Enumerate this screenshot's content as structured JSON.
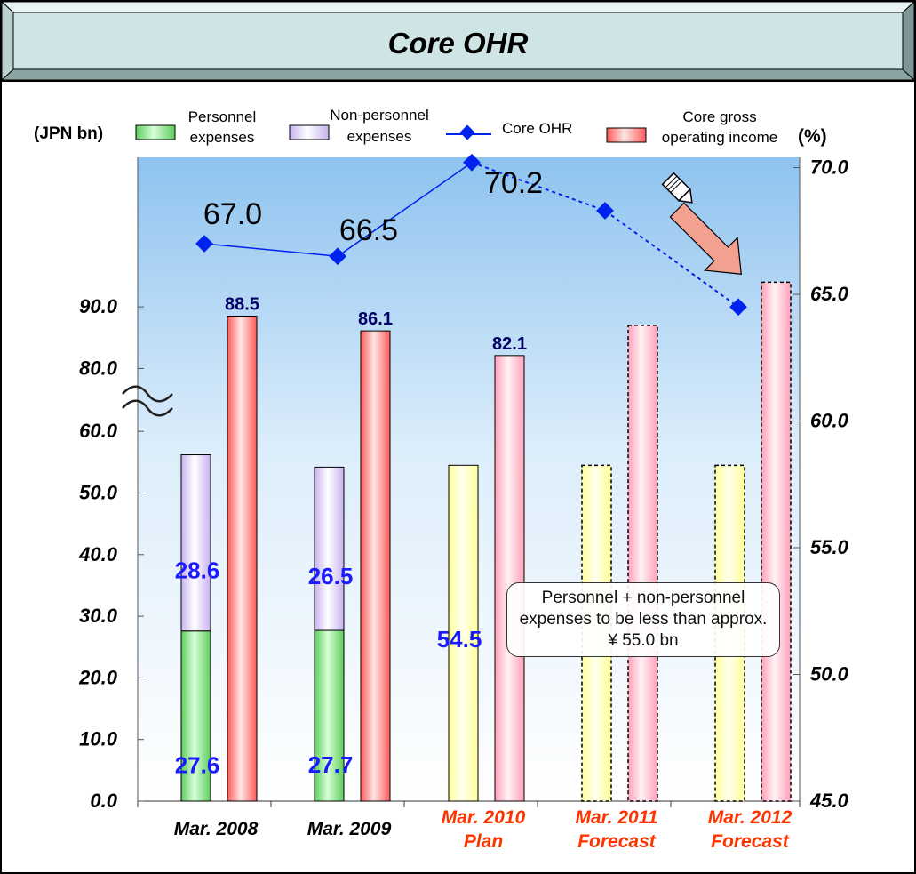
{
  "title": "Core OHR",
  "left_axis_unit": "(JPN bn)",
  "right_axis_unit": "(%)",
  "legend": {
    "personnel": [
      "Personnel",
      "expenses"
    ],
    "nonpersonnel": [
      "Non-personnel",
      "expenses"
    ],
    "ohr": "Core OHR",
    "income": [
      "Core gross",
      "operating income"
    ]
  },
  "callout_text": "Personnel + non-personnel expenses to be less than approx. ¥ 55.0 bn",
  "colors": {
    "personnel": "#7fe07f",
    "nonpersonnel": "#d9c8f2",
    "income": "#ff9a9a",
    "plan_expense": "#ffffc0",
    "ohr_line": "#0022ee",
    "forecast_label": "#ff3300",
    "header_bg": "#cfe5e5",
    "plot_sky": "#9fcdf2"
  },
  "chart_data": {
    "type": "bar",
    "categories": [
      {
        "lines": [
          "Mar. 2008"
        ],
        "style": "actual"
      },
      {
        "lines": [
          "Mar. 2009"
        ],
        "style": "actual"
      },
      {
        "lines": [
          "Mar. 2010",
          "Plan"
        ],
        "style": "plan"
      },
      {
        "lines": [
          "Mar. 2011",
          "Forecast"
        ],
        "style": "forecast"
      },
      {
        "lines": [
          "Mar. 2012",
          "Forecast"
        ],
        "style": "forecast"
      }
    ],
    "series": [
      {
        "name": "Personnel expenses",
        "values": [
          27.6,
          27.7,
          null,
          null,
          null
        ],
        "labels": [
          "27.6",
          "27.7",
          "",
          "",
          ""
        ]
      },
      {
        "name": "Non-personnel expenses",
        "values": [
          28.6,
          26.5,
          null,
          null,
          null
        ],
        "labels": [
          "28.6",
          "26.5",
          "",
          "",
          ""
        ]
      },
      {
        "name": "Personnel + non-personnel expenses",
        "values": [
          null,
          null,
          54.5,
          54.5,
          54.5
        ],
        "labels": [
          "",
          "",
          "54.5",
          "",
          ""
        ]
      },
      {
        "name": "Core gross operating income",
        "values": [
          88.5,
          86.1,
          82.1,
          87,
          94
        ],
        "labels": [
          "88.5",
          "86.1",
          "82.1",
          "",
          ""
        ]
      },
      {
        "name": "Core OHR",
        "values": [
          67.0,
          66.5,
          70.2,
          68.3,
          64.5
        ],
        "labels": [
          "67.0",
          "66.5",
          "70.2",
          "",
          ""
        ],
        "axis": "right"
      }
    ],
    "left_axis": {
      "ticks": [
        0,
        10,
        20,
        30,
        40,
        50,
        60,
        80,
        90
      ],
      "tick_labels": [
        "0.0",
        "10.0",
        "20.0",
        "30.0",
        "40.0",
        "50.0",
        "60.0",
        "80.0",
        "90.0"
      ],
      "axis_break": [
        65,
        75
      ]
    },
    "right_axis": {
      "ylim": [
        45,
        70
      ],
      "ticks": [
        45,
        50,
        55,
        60,
        65,
        70
      ],
      "tick_labels": [
        "45.0",
        "50.0",
        "55.0",
        "60.0",
        "65.0",
        "70.0"
      ]
    },
    "grid": false,
    "legend_position": "top"
  }
}
